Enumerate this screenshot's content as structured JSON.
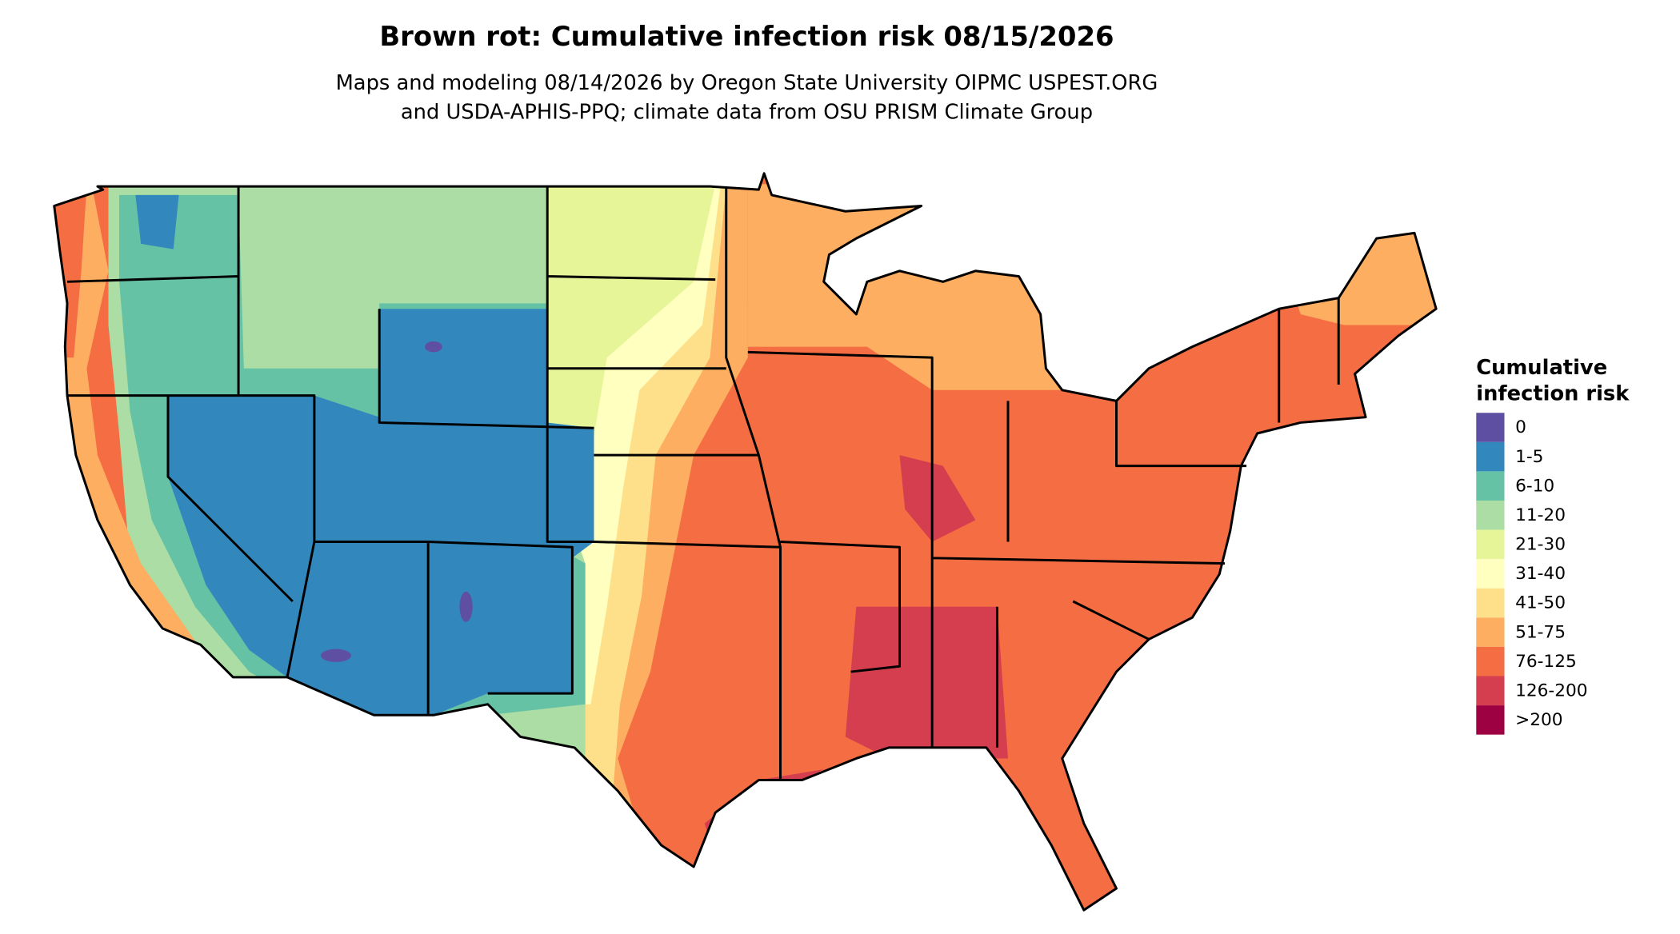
{
  "header": {
    "title": "Brown rot: Cumulative infection risk 08/15/2026",
    "subtitle": [
      "Maps and modeling 08/14/2026 by Oregon State University OIPMC USPEST.ORG",
      "and USDA-APHIS-PPQ; climate data from OSU PRISM Climate Group"
    ]
  },
  "legend": {
    "title": [
      "Cumulative",
      "infection risk"
    ],
    "items": [
      {
        "label": "0",
        "color": "#5e4fa2"
      },
      {
        "label": "1-5",
        "color": "#3288bd"
      },
      {
        "label": "6-10",
        "color": "#66c2a5"
      },
      {
        "label": "11-20",
        "color": "#abdda4"
      },
      {
        "label": "21-30",
        "color": "#e6f598"
      },
      {
        "label": "31-40",
        "color": "#ffffbf"
      },
      {
        "label": "41-50",
        "color": "#fee08b"
      },
      {
        "label": "51-75",
        "color": "#fdae61"
      },
      {
        "label": "76-125",
        "color": "#f46d43"
      },
      {
        "label": "126-200",
        "color": "#d53e4f"
      },
      {
        "label": ">200",
        "color": "#9e0142"
      }
    ]
  }
}
